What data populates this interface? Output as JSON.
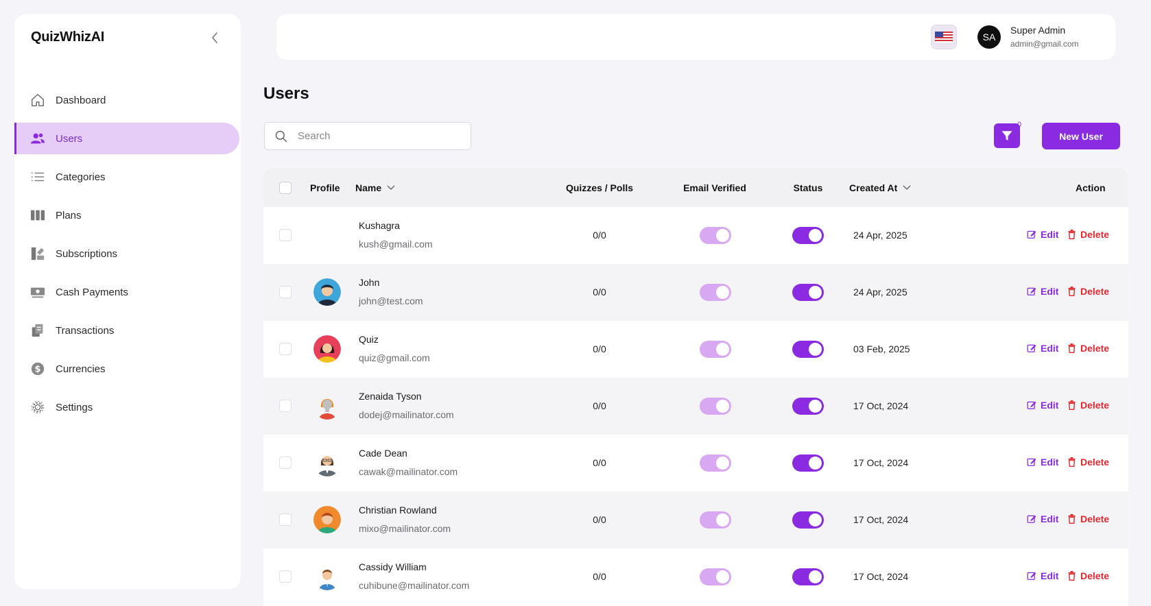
{
  "app": {
    "brand": "QuizWhizAI"
  },
  "sidebar": {
    "items": [
      {
        "label": "Dashboard",
        "icon": "home-icon"
      },
      {
        "label": "Users",
        "icon": "users-icon",
        "active": true
      },
      {
        "label": "Categories",
        "icon": "list-icon"
      },
      {
        "label": "Plans",
        "icon": "columns-icon"
      },
      {
        "label": "Subscriptions",
        "icon": "subscriptions-icon"
      },
      {
        "label": "Cash Payments",
        "icon": "cash-icon"
      },
      {
        "label": "Transactions",
        "icon": "transactions-icon"
      },
      {
        "label": "Currencies",
        "icon": "dollar-icon"
      },
      {
        "label": "Settings",
        "icon": "gear-icon"
      }
    ]
  },
  "header": {
    "user_initials": "SA",
    "user_name": "Super Admin",
    "user_email": "admin@gmail.com",
    "language_flag": "us-flag-icon"
  },
  "main": {
    "title": "Users",
    "search_placeholder": "Search",
    "filter_count": "0",
    "new_user_label": "New User"
  },
  "colors": {
    "accent": "#8a2be2",
    "active_bg": "#e6cdf8",
    "danger": "#e0282d",
    "toggle_light": "#d9a8f2"
  },
  "table": {
    "columns": {
      "profile": "Profile",
      "name": "Name",
      "quizzes": "Quizzes / Polls",
      "email_verified": "Email Verified",
      "status": "Status",
      "created_at": "Created At",
      "action": "Action"
    },
    "edit_label": "Edit",
    "delete_label": "Delete",
    "rows": [
      {
        "name": "Kushagra",
        "email": "kush@gmail.com",
        "quizzes": "0/0",
        "created": "24 Apr, 2025",
        "avatar": "none",
        "email_verified": true,
        "status": true
      },
      {
        "name": "John",
        "email": "john@test.com",
        "quizzes": "0/0",
        "created": "24 Apr, 2025",
        "avatar": "man-blue",
        "email_verified": true,
        "status": true
      },
      {
        "name": "Quiz",
        "email": "quiz@gmail.com",
        "quizzes": "0/0",
        "created": "03 Feb, 2025",
        "avatar": "woman-red",
        "email_verified": true,
        "status": true
      },
      {
        "name": "Zenaida Tyson",
        "email": "dodej@mailinator.com",
        "quizzes": "0/0",
        "created": "17 Oct, 2024",
        "avatar": "woman-gray",
        "email_verified": true,
        "status": true
      },
      {
        "name": "Cade Dean",
        "email": "cawak@mailinator.com",
        "quizzes": "0/0",
        "created": "17 Oct, 2024",
        "avatar": "woman-suit",
        "email_verified": true,
        "status": true
      },
      {
        "name": "Christian Rowland",
        "email": "mixo@mailinator.com",
        "quizzes": "0/0",
        "created": "17 Oct, 2024",
        "avatar": "man-orange",
        "email_verified": true,
        "status": true
      },
      {
        "name": "Cassidy William",
        "email": "cuhibune@mailinator.com",
        "quizzes": "0/0",
        "created": "17 Oct, 2024",
        "avatar": "man-plain",
        "email_verified": true,
        "status": true
      }
    ]
  }
}
